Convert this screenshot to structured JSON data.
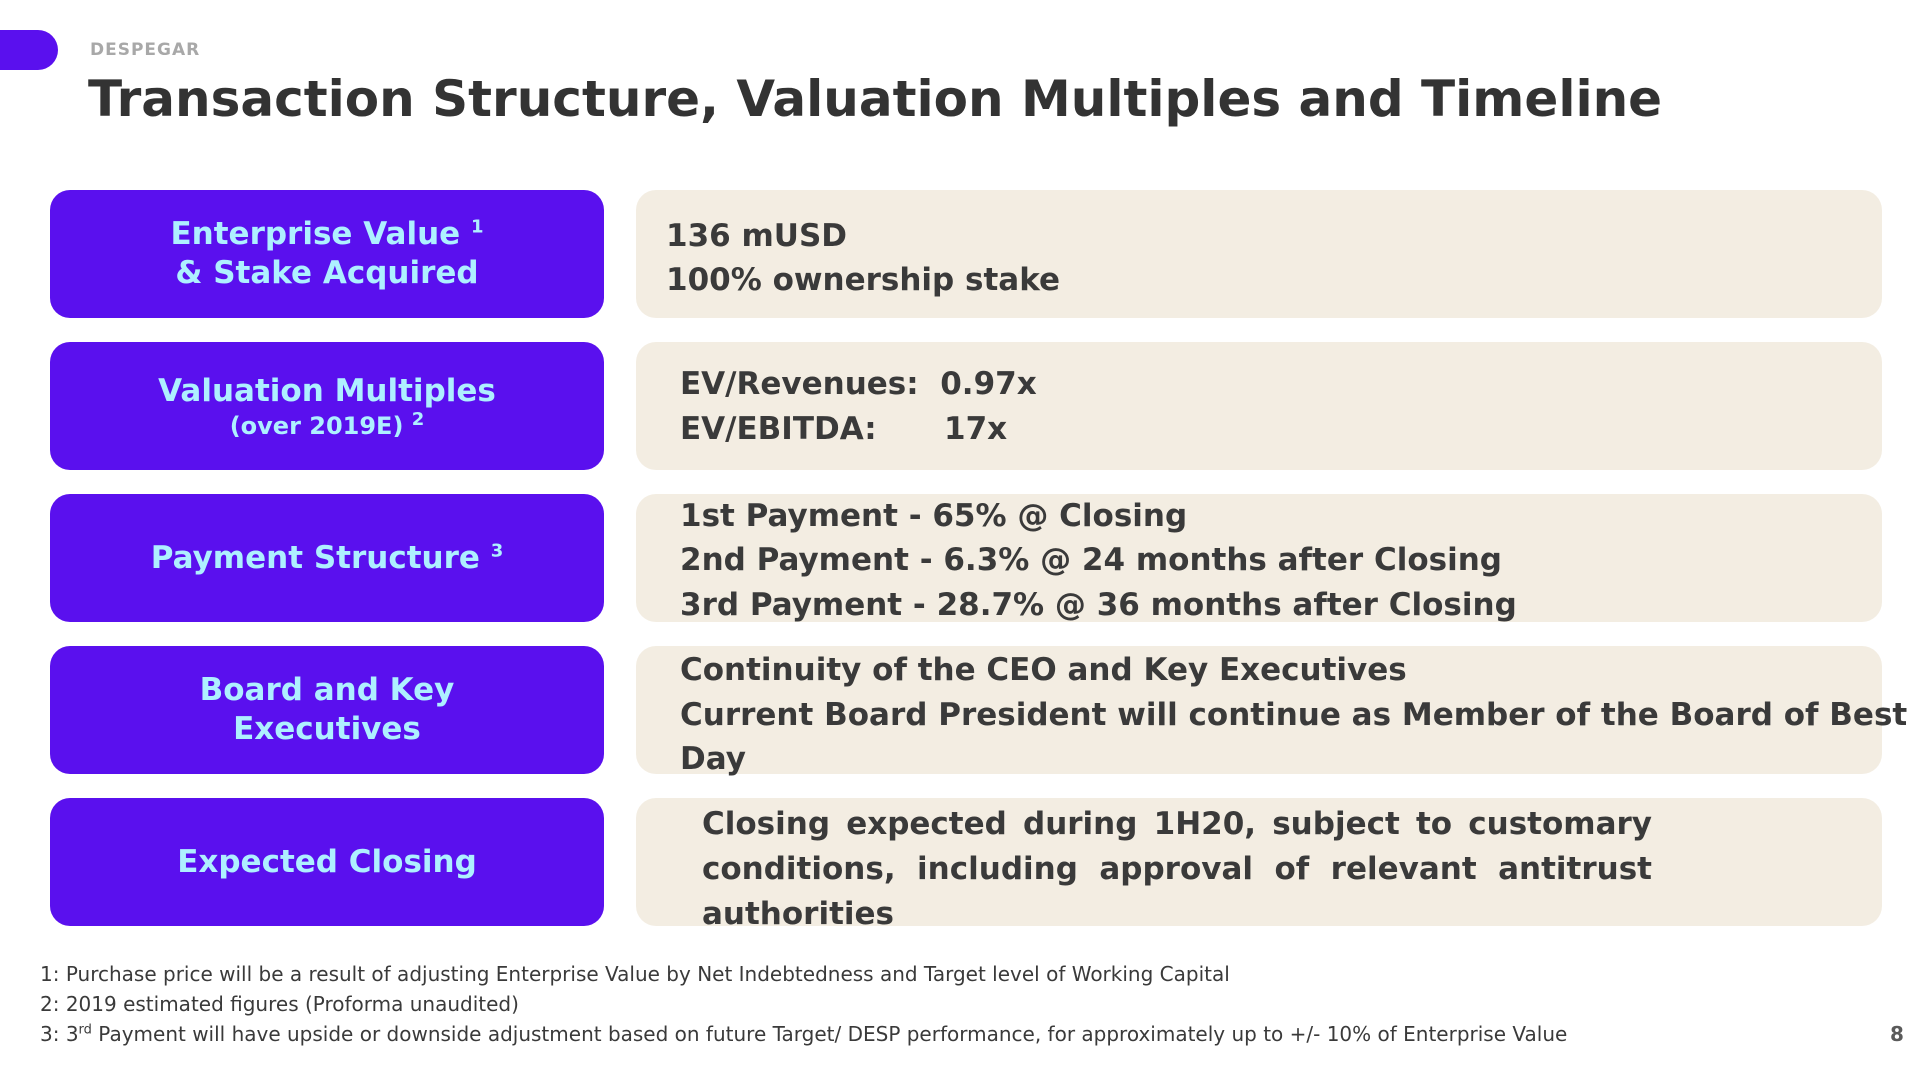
{
  "brand": "DESPEGAR",
  "title": "Transaction Structure,  Valuation Multiples and Timeline",
  "rows": [
    {
      "label_line1": "Enterprise Value",
      "label_sup1": "1",
      "label_line2": "& Stake Acquired",
      "values": [
        "136 mUSD",
        "100% ownership stake"
      ]
    },
    {
      "label_line1": "Valuation Multiples",
      "label_sub": "(over 2019E)",
      "label_sup": "2",
      "ev_revenues_label": "EV/Revenues:",
      "ev_revenues_value": "0.97x",
      "ev_ebitda_label": "EV/EBITDA:",
      "ev_ebitda_value": "17x"
    },
    {
      "label_line1": "Payment Structure",
      "label_sup": "3",
      "values": [
        "1st Payment - 65% @ Closing",
        "2nd Payment - 6.3% @ 24 months after Closing",
        "3rd Payment -  28.7% @ 36 months after Closing"
      ]
    },
    {
      "label_line1": "Board and Key",
      "label_line2": "Executives",
      "values": [
        "Continuity of the CEO and Key Executives",
        "Current Board President will continue as Member of the Board of Best",
        "Day"
      ]
    },
    {
      "label_line1": "Expected Closing",
      "value": "Closing expected during 1H20, subject to customary conditions, including approval of relevant antitrust authorities"
    }
  ],
  "footnotes": {
    "f1": "1: Purchase price will be a result of adjusting Enterprise Value  by Net Indebtedness and Target level of Working Capital",
    "f2": "2: 2019 estimated figures (Proforma unaudited)",
    "f3_prefix": "3: 3",
    "f3_sup": "rd",
    "f3_rest": " Payment will have upside or downside adjustment based on future Target/ DESP performance, for approximately up to +/- 10% of Enterprise Value"
  },
  "page_number": "8",
  "colors": {
    "accent": "#5a10ee",
    "label_text": "#aef0ff",
    "value_bg": "#f3ede2"
  }
}
